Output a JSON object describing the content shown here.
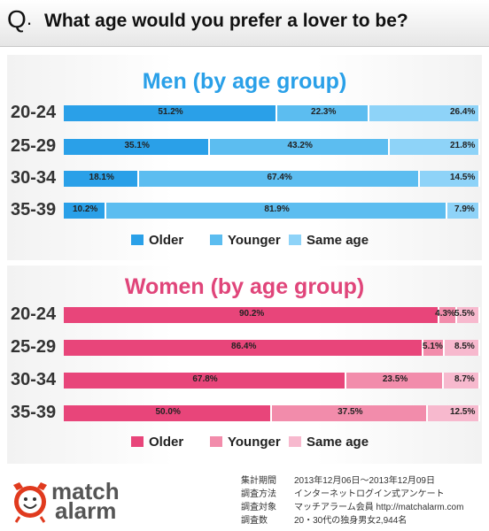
{
  "header": {
    "q_mark": "Q",
    "dot": ".",
    "question": "What age would you prefer a lover to be?"
  },
  "colors": {
    "men": [
      "#2aa0e8",
      "#5cbdf0",
      "#8ed3f8"
    ],
    "women": [
      "#e8457a",
      "#f28cab",
      "#f7b9ce"
    ],
    "men_title": "#2aa0e8",
    "women_title": "#e0457a"
  },
  "chart_data": [
    {
      "type": "bar",
      "stacked": true,
      "orientation": "horizontal",
      "title": "Men (by age group)",
      "categories": [
        "20-24",
        "25-29",
        "30-34",
        "35-39"
      ],
      "series": [
        {
          "name": "Older",
          "values": [
            51.2,
            35.1,
            18.1,
            10.2
          ],
          "labels": [
            "51.2%",
            "35.1%",
            "18.1%",
            "10.2%"
          ]
        },
        {
          "name": "Younger",
          "values": [
            22.3,
            43.2,
            67.4,
            81.9
          ],
          "labels": [
            "22.3%",
            "43.2%",
            "67.4%",
            "81.9%"
          ]
        },
        {
          "name": "Same age",
          "values": [
            26.4,
            21.8,
            14.5,
            7.9
          ],
          "labels": [
            "26.4%",
            "21.8%",
            "14.5%",
            "7.9%"
          ]
        }
      ],
      "xlim": [
        0,
        100
      ],
      "legend": "bottom"
    },
    {
      "type": "bar",
      "stacked": true,
      "orientation": "horizontal",
      "title": "Women (by age group)",
      "categories": [
        "20-24",
        "25-29",
        "30-34",
        "35-39"
      ],
      "series": [
        {
          "name": "Older",
          "values": [
            90.2,
            86.4,
            67.8,
            50.0
          ],
          "labels": [
            "90.2%",
            "86.4%",
            "67.8%",
            "50.0%"
          ]
        },
        {
          "name": "Younger",
          "values": [
            4.3,
            5.1,
            23.5,
            37.5
          ],
          "labels": [
            "4.3%",
            "5.1%",
            "23.5%",
            "37.5%"
          ]
        },
        {
          "name": "Same age",
          "values": [
            5.5,
            8.5,
            8.7,
            12.5
          ],
          "labels": [
            "5.5%",
            "8.5%",
            "8.7%",
            "12.5%"
          ]
        }
      ],
      "xlim": [
        0,
        100
      ],
      "legend": "bottom"
    }
  ],
  "footer": {
    "rows": [
      {
        "key": "集計期間",
        "value": "2013年12月06日～2013年12月09日"
      },
      {
        "key": "調査方法",
        "value": "インターネットログイン式アンケート"
      },
      {
        "key": "調査対象",
        "value": "マッチアラーム会員  http://matchalarm.com"
      },
      {
        "key": "調査数",
        "value": "20・30代の独身男女2,944名"
      }
    ],
    "logo_top": "match",
    "logo_bottom": "alarm"
  }
}
